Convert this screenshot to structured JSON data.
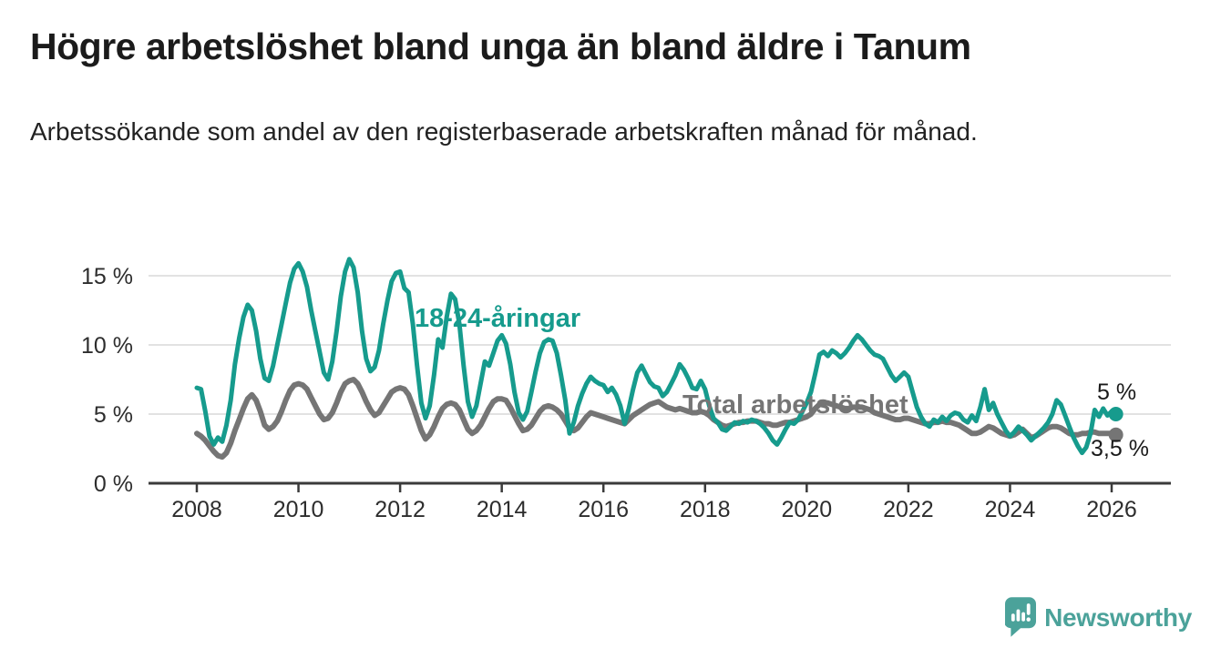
{
  "header": {
    "title": "Högre arbetslöshet bland unga än bland äldre i Tanum",
    "subtitle": "Arbetssökande som andel av den registerbaserade arbetskraften månad för månad."
  },
  "labels": {
    "youth": "18-24-åringar",
    "total": "Total arbetslöshet",
    "youth_end": "5 %",
    "total_end": "3,5 %"
  },
  "footer": {
    "brand": "Newsworthy"
  },
  "colors": {
    "youth_line": "#169b8d",
    "total_line": "#757575",
    "grid": "#d9d9d9",
    "axis": "#3a3a3a",
    "axis_text": "#2d2d2d",
    "logo_teal": "#4ba29a"
  },
  "chart_data": {
    "type": "line",
    "title": "Högre arbetslöshet bland unga än bland äldre i Tanum",
    "subtitle": "Arbetssökande som andel av den registerbaserade arbetskraften månad för månad.",
    "x_unit": "monthly values, January 2008 – February 2026",
    "x_range": [
      2008,
      2026.17
    ],
    "ylim": [
      0,
      16.5
    ],
    "grid": true,
    "legend_position": "inline-labels",
    "x_tick_labels": [
      "2008",
      "2010",
      "2012",
      "2014",
      "2016",
      "2018",
      "2020",
      "2022",
      "2024",
      "2026"
    ],
    "x_tick_years": [
      2008,
      2010,
      2012,
      2014,
      2016,
      2018,
      2020,
      2022,
      2024,
      2026
    ],
    "y_tick_labels": [
      "0 %",
      "5 %",
      "10 %",
      "15 %"
    ],
    "y_tick_values": [
      0,
      5,
      10,
      15
    ],
    "series": [
      {
        "name": "Total arbetslöshet",
        "color": "#757575",
        "line_width": 6,
        "end_label": "3,5 %",
        "end_value": 3.5,
        "start_year": 2008,
        "values": [
          3.6,
          3.4,
          3.1,
          2.7,
          2.3,
          2.0,
          1.9,
          2.2,
          2.9,
          3.8,
          4.6,
          5.4,
          6.1,
          6.4,
          6.0,
          5.2,
          4.2,
          3.9,
          4.1,
          4.5,
          5.2,
          6.0,
          6.7,
          7.1,
          7.2,
          7.1,
          6.8,
          6.2,
          5.6,
          5.0,
          4.6,
          4.7,
          5.1,
          5.8,
          6.6,
          7.2,
          7.4,
          7.5,
          7.2,
          6.6,
          5.9,
          5.3,
          4.9,
          5.1,
          5.6,
          6.1,
          6.6,
          6.8,
          6.9,
          6.8,
          6.4,
          5.6,
          4.7,
          3.8,
          3.2,
          3.5,
          4.1,
          4.8,
          5.4,
          5.7,
          5.8,
          5.7,
          5.3,
          4.6,
          3.9,
          3.6,
          3.8,
          4.2,
          4.8,
          5.4,
          5.9,
          6.1,
          6.1,
          6.0,
          5.5,
          4.9,
          4.3,
          3.8,
          3.9,
          4.2,
          4.7,
          5.2,
          5.5,
          5.6,
          5.5,
          5.3,
          5.0,
          4.5,
          4.0,
          3.8,
          4.0,
          4.4,
          4.8,
          5.1,
          5.0,
          4.9,
          4.8,
          4.7,
          4.6,
          4.5,
          4.4,
          4.3,
          4.6,
          4.9,
          5.1,
          5.3,
          5.5,
          5.7,
          5.8,
          5.9,
          5.7,
          5.5,
          5.4,
          5.3,
          5.4,
          5.3,
          5.2,
          5.1,
          5.1,
          5.2,
          5.1,
          4.9,
          4.6,
          4.4,
          4.2,
          4.1,
          4.2,
          4.3,
          4.4,
          4.4,
          4.5,
          4.5,
          4.5,
          4.4,
          4.3,
          4.3,
          4.2,
          4.2,
          4.3,
          4.4,
          4.4,
          4.5,
          4.6,
          4.7,
          4.8,
          5.0,
          5.4,
          5.7,
          5.8,
          5.8,
          5.7,
          5.6,
          5.5,
          5.4,
          5.4,
          5.5,
          5.5,
          5.5,
          5.4,
          5.3,
          5.1,
          5.0,
          4.9,
          4.8,
          4.7,
          4.6,
          4.6,
          4.7,
          4.7,
          4.6,
          4.5,
          4.4,
          4.3,
          4.3,
          4.4,
          4.4,
          4.5,
          4.4,
          4.4,
          4.3,
          4.2,
          4.0,
          3.8,
          3.6,
          3.6,
          3.7,
          3.9,
          4.1,
          4.0,
          3.8,
          3.6,
          3.5,
          3.4,
          3.5,
          3.7,
          3.9,
          3.6,
          3.3,
          3.4,
          3.6,
          3.8,
          4.0,
          4.1,
          4.1,
          4.0,
          3.8,
          3.6,
          3.5,
          3.5,
          3.6,
          3.6,
          3.7,
          3.7,
          3.6,
          3.6,
          3.6,
          3.6,
          3.5
        ]
      },
      {
        "name": "18-24-åringar",
        "color": "#169b8d",
        "line_width": 5,
        "end_label": "5 %",
        "end_value": 5.0,
        "start_year": 2008,
        "values": [
          6.9,
          6.8,
          5.2,
          3.4,
          2.8,
          3.3,
          3.0,
          4.2,
          6.0,
          8.6,
          10.5,
          12.0,
          12.9,
          12.5,
          11.0,
          9.0,
          7.6,
          7.4,
          8.5,
          10.0,
          11.5,
          13.0,
          14.5,
          15.5,
          15.9,
          15.3,
          14.2,
          12.5,
          11.0,
          9.5,
          8.0,
          7.5,
          8.8,
          11.0,
          13.5,
          15.3,
          16.2,
          15.6,
          13.8,
          11.0,
          9.0,
          8.1,
          8.4,
          9.6,
          11.5,
          13.2,
          14.6,
          15.2,
          15.3,
          14.1,
          13.8,
          11.5,
          8.5,
          5.8,
          4.7,
          5.6,
          7.8,
          10.4,
          9.8,
          12.0,
          13.7,
          13.3,
          11.5,
          8.5,
          5.9,
          4.8,
          5.6,
          7.2,
          8.8,
          8.5,
          9.4,
          10.3,
          10.7,
          10.1,
          8.6,
          6.6,
          5.1,
          4.6,
          5.2,
          6.6,
          8.1,
          9.4,
          10.2,
          10.4,
          10.3,
          9.4,
          7.8,
          6.0,
          3.6,
          4.4,
          5.6,
          6.5,
          7.2,
          7.7,
          7.4,
          7.2,
          7.1,
          6.6,
          6.9,
          6.4,
          5.6,
          4.3,
          5.4,
          6.8,
          8.0,
          8.5,
          7.9,
          7.3,
          7.0,
          6.9,
          6.3,
          6.6,
          7.2,
          7.8,
          8.6,
          8.2,
          7.6,
          6.9,
          6.8,
          7.4,
          6.8,
          5.6,
          4.7,
          4.4,
          3.9,
          3.8,
          4.1,
          4.4,
          4.3,
          4.5,
          4.4,
          4.6,
          4.5,
          4.3,
          4.0,
          3.6,
          3.1,
          2.8,
          3.3,
          3.9,
          4.4,
          4.3,
          4.6,
          5.2,
          5.8,
          6.6,
          7.9,
          9.3,
          9.5,
          9.2,
          9.6,
          9.4,
          9.1,
          9.4,
          9.8,
          10.3,
          10.7,
          10.4,
          10.0,
          9.6,
          9.3,
          9.2,
          9.0,
          8.4,
          7.8,
          7.4,
          7.7,
          8.0,
          7.7,
          6.6,
          5.5,
          4.8,
          4.3,
          4.1,
          4.6,
          4.4,
          4.8,
          4.5,
          4.9,
          5.1,
          5.0,
          4.6,
          4.4,
          4.9,
          4.5,
          5.5,
          6.8,
          5.3,
          5.8,
          5.0,
          4.4,
          3.8,
          3.4,
          3.7,
          4.1,
          3.8,
          3.5,
          3.1,
          3.4,
          3.7,
          4.0,
          4.4,
          5.0,
          6.0,
          5.7,
          4.9,
          4.1,
          3.3,
          2.7,
          2.2,
          2.6,
          3.6,
          5.3,
          4.8,
          5.4,
          4.9,
          5.2,
          5.0
        ]
      }
    ]
  }
}
